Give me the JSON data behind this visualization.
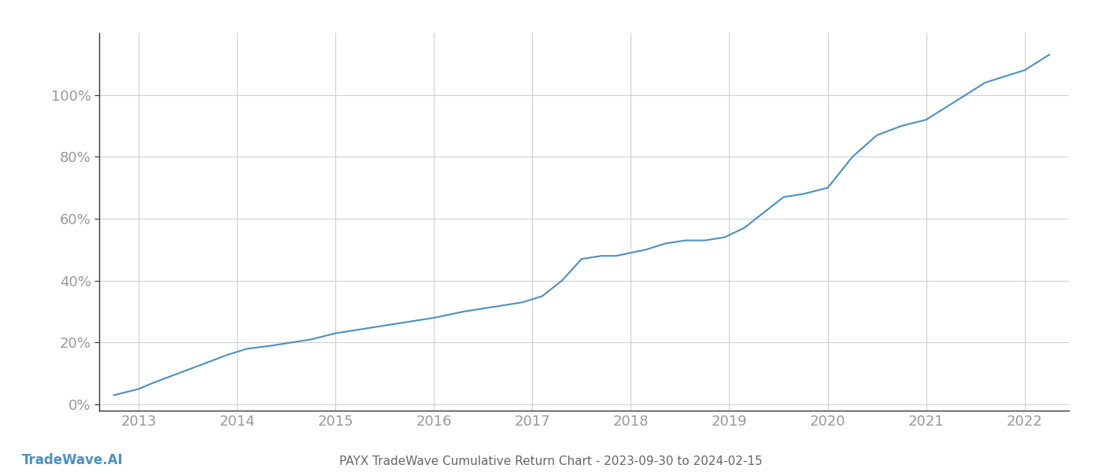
{
  "title": "PAYX TradeWave Cumulative Return Chart - 2023-09-30 to 2024-02-15",
  "watermark": "TradeWave.AI",
  "line_color": "#4a90c4",
  "background_color": "#ffffff",
  "grid_color": "#d0d0d0",
  "tick_color": "#999999",
  "spine_color": "#333333",
  "x_years": [
    2013,
    2014,
    2015,
    2016,
    2017,
    2018,
    2019,
    2020,
    2021,
    2022
  ],
  "y_ticks": [
    0,
    20,
    40,
    60,
    80,
    100
  ],
  "xlim": [
    2012.6,
    2022.45
  ],
  "ylim": [
    -2,
    120
  ],
  "data_x": [
    2012.75,
    2013.0,
    2013.15,
    2013.4,
    2013.65,
    2013.9,
    2014.1,
    2014.35,
    2014.55,
    2014.75,
    2015.0,
    2015.2,
    2015.4,
    2015.6,
    2015.8,
    2016.0,
    2016.15,
    2016.3,
    2016.5,
    2016.7,
    2016.9,
    2017.1,
    2017.3,
    2017.5,
    2017.7,
    2017.85,
    2018.0,
    2018.15,
    2018.35,
    2018.55,
    2018.75,
    2018.95,
    2019.15,
    2019.35,
    2019.55,
    2019.75,
    2020.0,
    2020.25,
    2020.5,
    2020.75,
    2021.0,
    2021.2,
    2021.4,
    2021.6,
    2021.8,
    2022.0,
    2022.25
  ],
  "data_y": [
    3,
    5,
    7,
    10,
    13,
    16,
    18,
    19,
    20,
    21,
    23,
    24,
    25,
    26,
    27,
    28,
    29,
    30,
    31,
    32,
    33,
    35,
    40,
    47,
    48,
    48,
    49,
    50,
    52,
    53,
    53,
    54,
    57,
    62,
    67,
    68,
    70,
    80,
    87,
    90,
    92,
    96,
    100,
    104,
    106,
    108,
    113
  ]
}
